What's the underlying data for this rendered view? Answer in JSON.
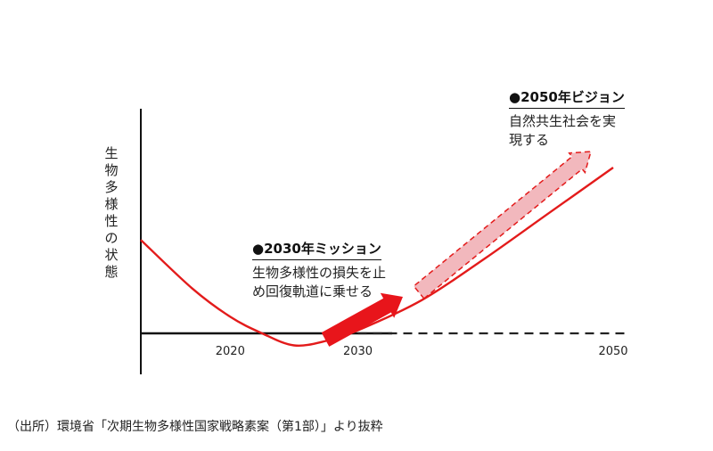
{
  "chart_data": {
    "type": "line",
    "title": "",
    "ylabel": "生物多様性の状態",
    "xlabel": "",
    "x_ticks": [
      "2020",
      "2030",
      "2050"
    ],
    "series": [
      {
        "name": "",
        "style": "solid",
        "color": "#e31b1b",
        "shape": "u-curve",
        "points": [
          [
            2013,
            0.62
          ],
          [
            2017,
            0.3
          ],
          [
            2020,
            0.11
          ],
          [
            2022.5,
            0.0
          ],
          [
            2025,
            -0.08
          ],
          [
            2027.5,
            -0.05
          ],
          [
            2030,
            0.02
          ],
          [
            2035,
            0.22
          ],
          [
            2040,
            0.5
          ],
          [
            2045,
            0.8
          ],
          [
            2050,
            1.1
          ]
        ]
      },
      {
        "name": "",
        "style": "dashed",
        "color": "#222222",
        "shape": "baseline-projection",
        "points": [
          [
            2030,
            0.0
          ],
          [
            2051,
            0.0
          ]
        ]
      }
    ],
    "annotations": [
      {
        "id": "mission",
        "title": "●2030年ミッション",
        "text": [
          "生物多様性の損失を止",
          "め回復軌道に乗せる"
        ],
        "arrow": "solid-red"
      },
      {
        "id": "vision",
        "title": "●2050年ビジョン",
        "text": [
          "自然共生社会を実",
          "現する"
        ],
        "arrow": "dashed-pink"
      }
    ]
  },
  "source": "（出所）環境省「次期生物多様性国家戦略素案（第1部）」より抜粋",
  "colors": {
    "curve": "#e31b1b",
    "arrow_solid": "#e8151b",
    "arrow_dashed_fill": "#f2b8bd",
    "axis": "#111111"
  }
}
